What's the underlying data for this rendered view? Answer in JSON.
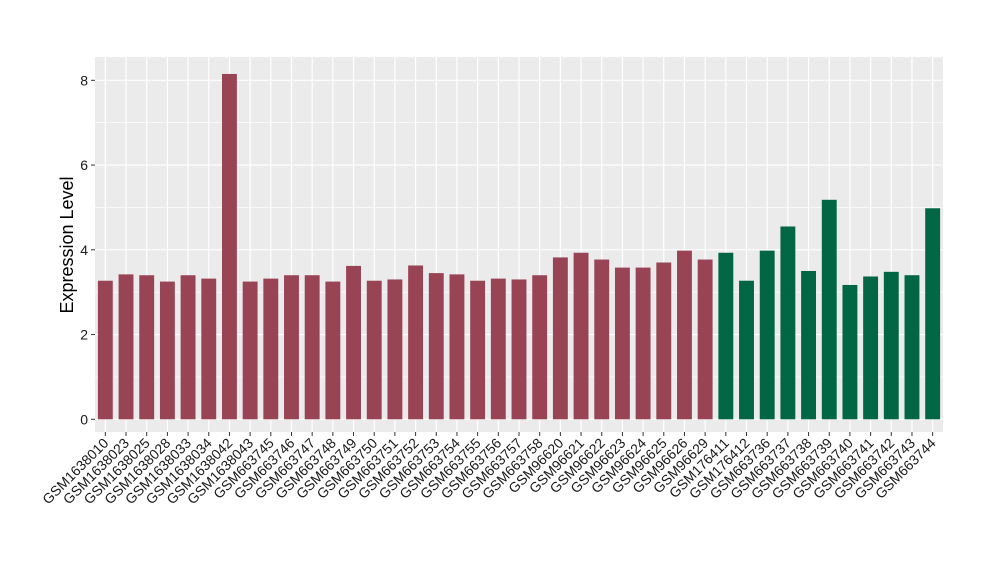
{
  "chart_data": {
    "type": "bar",
    "title": "",
    "xlabel": "",
    "ylabel": "Expression Level",
    "ylim": [
      -0.3,
      8.55
    ],
    "yticks": [
      0,
      2,
      4,
      6,
      8
    ],
    "grid": true,
    "colors": {
      "group1": "#994455",
      "group2": "#006644",
      "panel": "#ebebeb",
      "grid": "#ffffff"
    },
    "categories": [
      "GSM1638010",
      "GSM1638023",
      "GSM1638025",
      "GSM1638028",
      "GSM1638033",
      "GSM1638034",
      "GSM1638042",
      "GSM1638043",
      "GSM663745",
      "GSM663746",
      "GSM663747",
      "GSM663748",
      "GSM663749",
      "GSM663750",
      "GSM663751",
      "GSM663752",
      "GSM663753",
      "GSM663754",
      "GSM663755",
      "GSM663756",
      "GSM663757",
      "GSM663758",
      "GSM96620",
      "GSM96621",
      "GSM96622",
      "GSM96623",
      "GSM96624",
      "GSM96625",
      "GSM96626",
      "GSM96629",
      "GSM176411",
      "GSM176412",
      "GSM663736",
      "GSM663737",
      "GSM663738",
      "GSM663739",
      "GSM663740",
      "GSM663741",
      "GSM663742",
      "GSM663743",
      "GSM663744"
    ],
    "values": [
      3.27,
      3.42,
      3.4,
      3.25,
      3.4,
      3.32,
      8.15,
      3.25,
      3.32,
      3.4,
      3.4,
      3.25,
      3.62,
      3.27,
      3.3,
      3.63,
      3.45,
      3.42,
      3.27,
      3.32,
      3.3,
      3.4,
      3.82,
      3.93,
      3.77,
      3.58,
      3.58,
      3.7,
      3.98,
      3.77,
      3.93,
      3.27,
      3.98,
      4.55,
      3.5,
      5.18,
      3.17,
      3.37,
      3.48,
      3.4,
      4.98
    ],
    "groups": [
      "group1",
      "group1",
      "group1",
      "group1",
      "group1",
      "group1",
      "group1",
      "group1",
      "group1",
      "group1",
      "group1",
      "group1",
      "group1",
      "group1",
      "group1",
      "group1",
      "group1",
      "group1",
      "group1",
      "group1",
      "group1",
      "group1",
      "group1",
      "group1",
      "group1",
      "group1",
      "group1",
      "group1",
      "group1",
      "group1",
      "group2",
      "group2",
      "group2",
      "group2",
      "group2",
      "group2",
      "group2",
      "group2",
      "group2",
      "group2",
      "group2"
    ]
  }
}
